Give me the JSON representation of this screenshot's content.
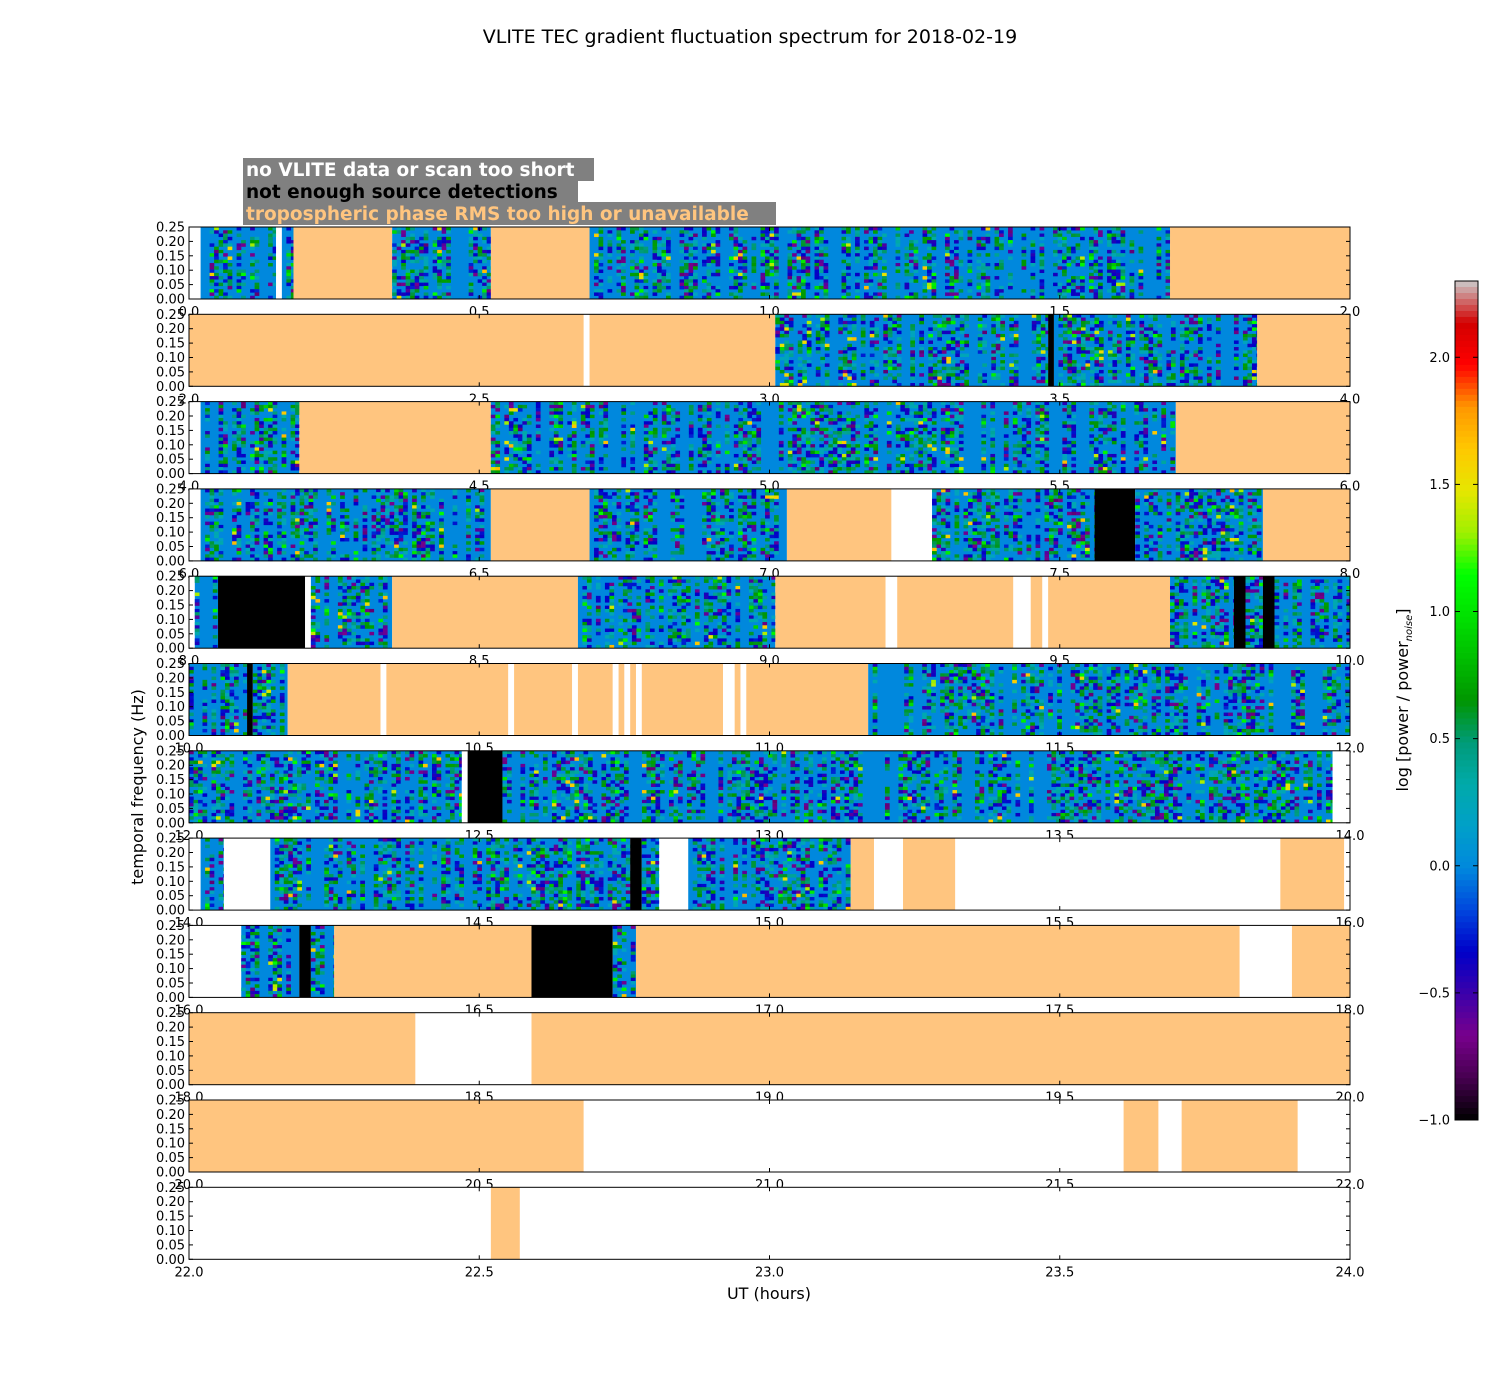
{
  "chart_data": {
    "type": "heatmap",
    "title": "VLITE TEC gradient fluctuation spectrum for 2018-02-19",
    "xlabel": "UT (hours)",
    "ylabel": "temporal frequency (Hz)",
    "ylim": [
      0,
      0.25
    ],
    "y_ticks": [
      "0.00",
      "0.05",
      "0.10",
      "0.15",
      "0.20",
      "0.25"
    ],
    "colorbar": {
      "label_main": "log [power / power",
      "label_sub": "noise",
      "label_end": "]",
      "range": [
        -1.0,
        2.3
      ],
      "ticks": [
        "−1.0",
        "−0.5",
        "0.0",
        "0.5",
        "1.0",
        "1.5",
        "2.0"
      ],
      "tick_values": [
        -1.0,
        -0.5,
        0.0,
        0.5,
        1.0,
        1.5,
        2.0
      ],
      "colormap": "nipy_spectral"
    },
    "legend": [
      {
        "label": "no VLITE data or scan too short",
        "text_color": "#ffffff",
        "category": "nodata"
      },
      {
        "label": "not enough source detections",
        "text_color": "#000000",
        "category": "nodet"
      },
      {
        "label": "tropospheric phase RMS too high or unavailable",
        "text_color": "#ffc57f",
        "category": "trop"
      }
    ],
    "category_colors": {
      "trop": "#ffc57f",
      "nodet": "#000000",
      "nodata": "#ffffff",
      "legend_bg": "#808080"
    },
    "panels": [
      {
        "range": [
          0,
          2
        ],
        "x_ticks": [
          "0.0",
          "0.5",
          "1.0",
          "1.5",
          "2.0"
        ],
        "segments": [
          [
            0.0,
            0.02,
            "nodata"
          ],
          [
            0.02,
            0.15,
            "data"
          ],
          [
            0.15,
            0.16,
            "nodata"
          ],
          [
            0.16,
            0.18,
            "data"
          ],
          [
            0.18,
            0.35,
            "trop"
          ],
          [
            0.35,
            0.52,
            "data"
          ],
          [
            0.52,
            0.69,
            "trop"
          ],
          [
            0.69,
            1.69,
            "data"
          ],
          [
            1.69,
            2.0,
            "trop"
          ]
        ]
      },
      {
        "range": [
          2,
          4
        ],
        "x_ticks": [
          "2.0",
          "2.5",
          "3.0",
          "3.5",
          "4.0"
        ],
        "segments": [
          [
            2.0,
            2.68,
            "trop"
          ],
          [
            2.68,
            2.69,
            "nodata"
          ],
          [
            2.69,
            3.01,
            "trop"
          ],
          [
            3.01,
            3.48,
            "data"
          ],
          [
            3.48,
            3.49,
            "nodet"
          ],
          [
            3.49,
            3.84,
            "data"
          ],
          [
            3.84,
            4.0,
            "trop"
          ]
        ]
      },
      {
        "range": [
          4,
          6
        ],
        "x_ticks": [
          "4.0",
          "4.5",
          "5.0",
          "5.5",
          "6.0"
        ],
        "segments": [
          [
            4.0,
            4.02,
            "nodata"
          ],
          [
            4.02,
            4.19,
            "data"
          ],
          [
            4.19,
            4.52,
            "trop"
          ],
          [
            4.52,
            5.7,
            "data"
          ],
          [
            5.7,
            6.0,
            "trop"
          ]
        ]
      },
      {
        "range": [
          6,
          8
        ],
        "x_ticks": [
          "6.0",
          "6.5",
          "7.0",
          "7.5",
          "8.0"
        ],
        "segments": [
          [
            6.0,
            6.02,
            "nodata"
          ],
          [
            6.02,
            6.52,
            "data"
          ],
          [
            6.52,
            6.69,
            "trop"
          ],
          [
            6.69,
            7.03,
            "data"
          ],
          [
            7.03,
            7.21,
            "trop"
          ],
          [
            7.21,
            7.28,
            "nodata"
          ],
          [
            7.28,
            7.56,
            "data"
          ],
          [
            7.56,
            7.63,
            "nodet"
          ],
          [
            7.63,
            7.85,
            "data"
          ],
          [
            7.85,
            8.0,
            "trop"
          ]
        ]
      },
      {
        "range": [
          8,
          10
        ],
        "x_ticks": [
          "8.0",
          "8.5",
          "9.0",
          "9.5",
          "10.0"
        ],
        "segments": [
          [
            8.0,
            8.01,
            "nodata"
          ],
          [
            8.01,
            8.05,
            "data"
          ],
          [
            8.05,
            8.2,
            "nodet"
          ],
          [
            8.2,
            8.21,
            "nodata"
          ],
          [
            8.21,
            8.35,
            "data"
          ],
          [
            8.35,
            8.67,
            "trop"
          ],
          [
            8.67,
            9.01,
            "data"
          ],
          [
            9.01,
            9.2,
            "trop"
          ],
          [
            9.2,
            9.22,
            "nodata"
          ],
          [
            9.22,
            9.42,
            "trop"
          ],
          [
            9.42,
            9.45,
            "nodata"
          ],
          [
            9.45,
            9.47,
            "trop"
          ],
          [
            9.47,
            9.48,
            "nodata"
          ],
          [
            9.48,
            9.69,
            "trop"
          ],
          [
            9.69,
            9.8,
            "data"
          ],
          [
            9.8,
            9.82,
            "nodet"
          ],
          [
            9.82,
            9.85,
            "data"
          ],
          [
            9.85,
            9.87,
            "nodet"
          ],
          [
            9.87,
            10.0,
            "data"
          ]
        ]
      },
      {
        "range": [
          10,
          12
        ],
        "x_ticks": [
          "10.0",
          "10.5",
          "11.0",
          "11.5",
          "12.0"
        ],
        "segments": [
          [
            10.0,
            10.1,
            "data"
          ],
          [
            10.1,
            10.11,
            "nodet"
          ],
          [
            10.11,
            10.17,
            "data"
          ],
          [
            10.17,
            10.33,
            "trop"
          ],
          [
            10.33,
            10.34,
            "nodata"
          ],
          [
            10.34,
            10.55,
            "trop"
          ],
          [
            10.55,
            10.56,
            "nodata"
          ],
          [
            10.56,
            10.66,
            "trop"
          ],
          [
            10.66,
            10.67,
            "nodata"
          ],
          [
            10.67,
            10.73,
            "trop"
          ],
          [
            10.73,
            10.74,
            "nodata"
          ],
          [
            10.74,
            10.75,
            "trop"
          ],
          [
            10.75,
            10.76,
            "nodata"
          ],
          [
            10.76,
            10.77,
            "trop"
          ],
          [
            10.77,
            10.78,
            "nodata"
          ],
          [
            10.78,
            10.92,
            "trop"
          ],
          [
            10.92,
            10.94,
            "nodata"
          ],
          [
            10.94,
            10.95,
            "trop"
          ],
          [
            10.95,
            10.96,
            "nodata"
          ],
          [
            10.96,
            11.17,
            "trop"
          ],
          [
            11.17,
            12.0,
            "data"
          ]
        ]
      },
      {
        "range": [
          12,
          14
        ],
        "x_ticks": [
          "12.0",
          "12.5",
          "13.0",
          "13.5",
          "14.0"
        ],
        "segments": [
          [
            12.0,
            12.47,
            "data"
          ],
          [
            12.47,
            12.48,
            "nodata"
          ],
          [
            12.48,
            12.54,
            "nodet"
          ],
          [
            12.54,
            13.97,
            "data"
          ],
          [
            13.97,
            14.0,
            "nodata"
          ]
        ]
      },
      {
        "range": [
          14,
          16
        ],
        "x_ticks": [
          "14.0",
          "14.5",
          "15.0",
          "15.5",
          "16.0"
        ],
        "segments": [
          [
            14.0,
            14.02,
            "nodata"
          ],
          [
            14.02,
            14.06,
            "data"
          ],
          [
            14.06,
            14.14,
            "nodata"
          ],
          [
            14.14,
            14.76,
            "data"
          ],
          [
            14.76,
            14.78,
            "nodet"
          ],
          [
            14.78,
            14.81,
            "data"
          ],
          [
            14.81,
            14.86,
            "nodata"
          ],
          [
            14.86,
            15.14,
            "data"
          ],
          [
            15.14,
            15.18,
            "trop"
          ],
          [
            15.18,
            15.23,
            "nodata"
          ],
          [
            15.23,
            15.32,
            "trop"
          ],
          [
            15.32,
            15.88,
            "nodata"
          ],
          [
            15.88,
            15.99,
            "trop"
          ],
          [
            15.99,
            16.0,
            "nodata"
          ]
        ]
      },
      {
        "range": [
          16,
          18
        ],
        "x_ticks": [
          "16.0",
          "16.5",
          "17.0",
          "17.5",
          "18.0"
        ],
        "segments": [
          [
            16.0,
            16.09,
            "nodata"
          ],
          [
            16.09,
            16.19,
            "data"
          ],
          [
            16.19,
            16.21,
            "nodet"
          ],
          [
            16.21,
            16.25,
            "data"
          ],
          [
            16.25,
            16.59,
            "trop"
          ],
          [
            16.59,
            16.73,
            "nodet"
          ],
          [
            16.73,
            16.77,
            "data"
          ],
          [
            16.77,
            17.81,
            "trop"
          ],
          [
            17.81,
            17.9,
            "nodata"
          ],
          [
            17.9,
            18.0,
            "trop"
          ]
        ]
      },
      {
        "range": [
          18,
          20
        ],
        "x_ticks": [
          "18.0",
          "18.5",
          "19.0",
          "19.5",
          "20.0"
        ],
        "segments": [
          [
            18.0,
            18.39,
            "trop"
          ],
          [
            18.39,
            18.59,
            "nodata"
          ],
          [
            18.59,
            20.0,
            "trop"
          ]
        ]
      },
      {
        "range": [
          20,
          22
        ],
        "x_ticks": [
          "20.0",
          "20.5",
          "21.0",
          "21.5",
          "22.0"
        ],
        "segments": [
          [
            20.0,
            20.68,
            "trop"
          ],
          [
            20.68,
            21.61,
            "nodata"
          ],
          [
            21.61,
            21.67,
            "trop"
          ],
          [
            21.67,
            21.71,
            "nodata"
          ],
          [
            21.71,
            21.91,
            "trop"
          ],
          [
            21.91,
            22.0,
            "nodata"
          ]
        ]
      },
      {
        "range": [
          22,
          24
        ],
        "x_ticks": [
          "22.0",
          "22.5",
          "23.0",
          "23.5",
          "24.0"
        ],
        "segments": [
          [
            22.0,
            22.52,
            "nodata"
          ],
          [
            22.52,
            22.57,
            "trop"
          ],
          [
            22.57,
            24.0,
            "nodata"
          ]
        ]
      }
    ]
  }
}
